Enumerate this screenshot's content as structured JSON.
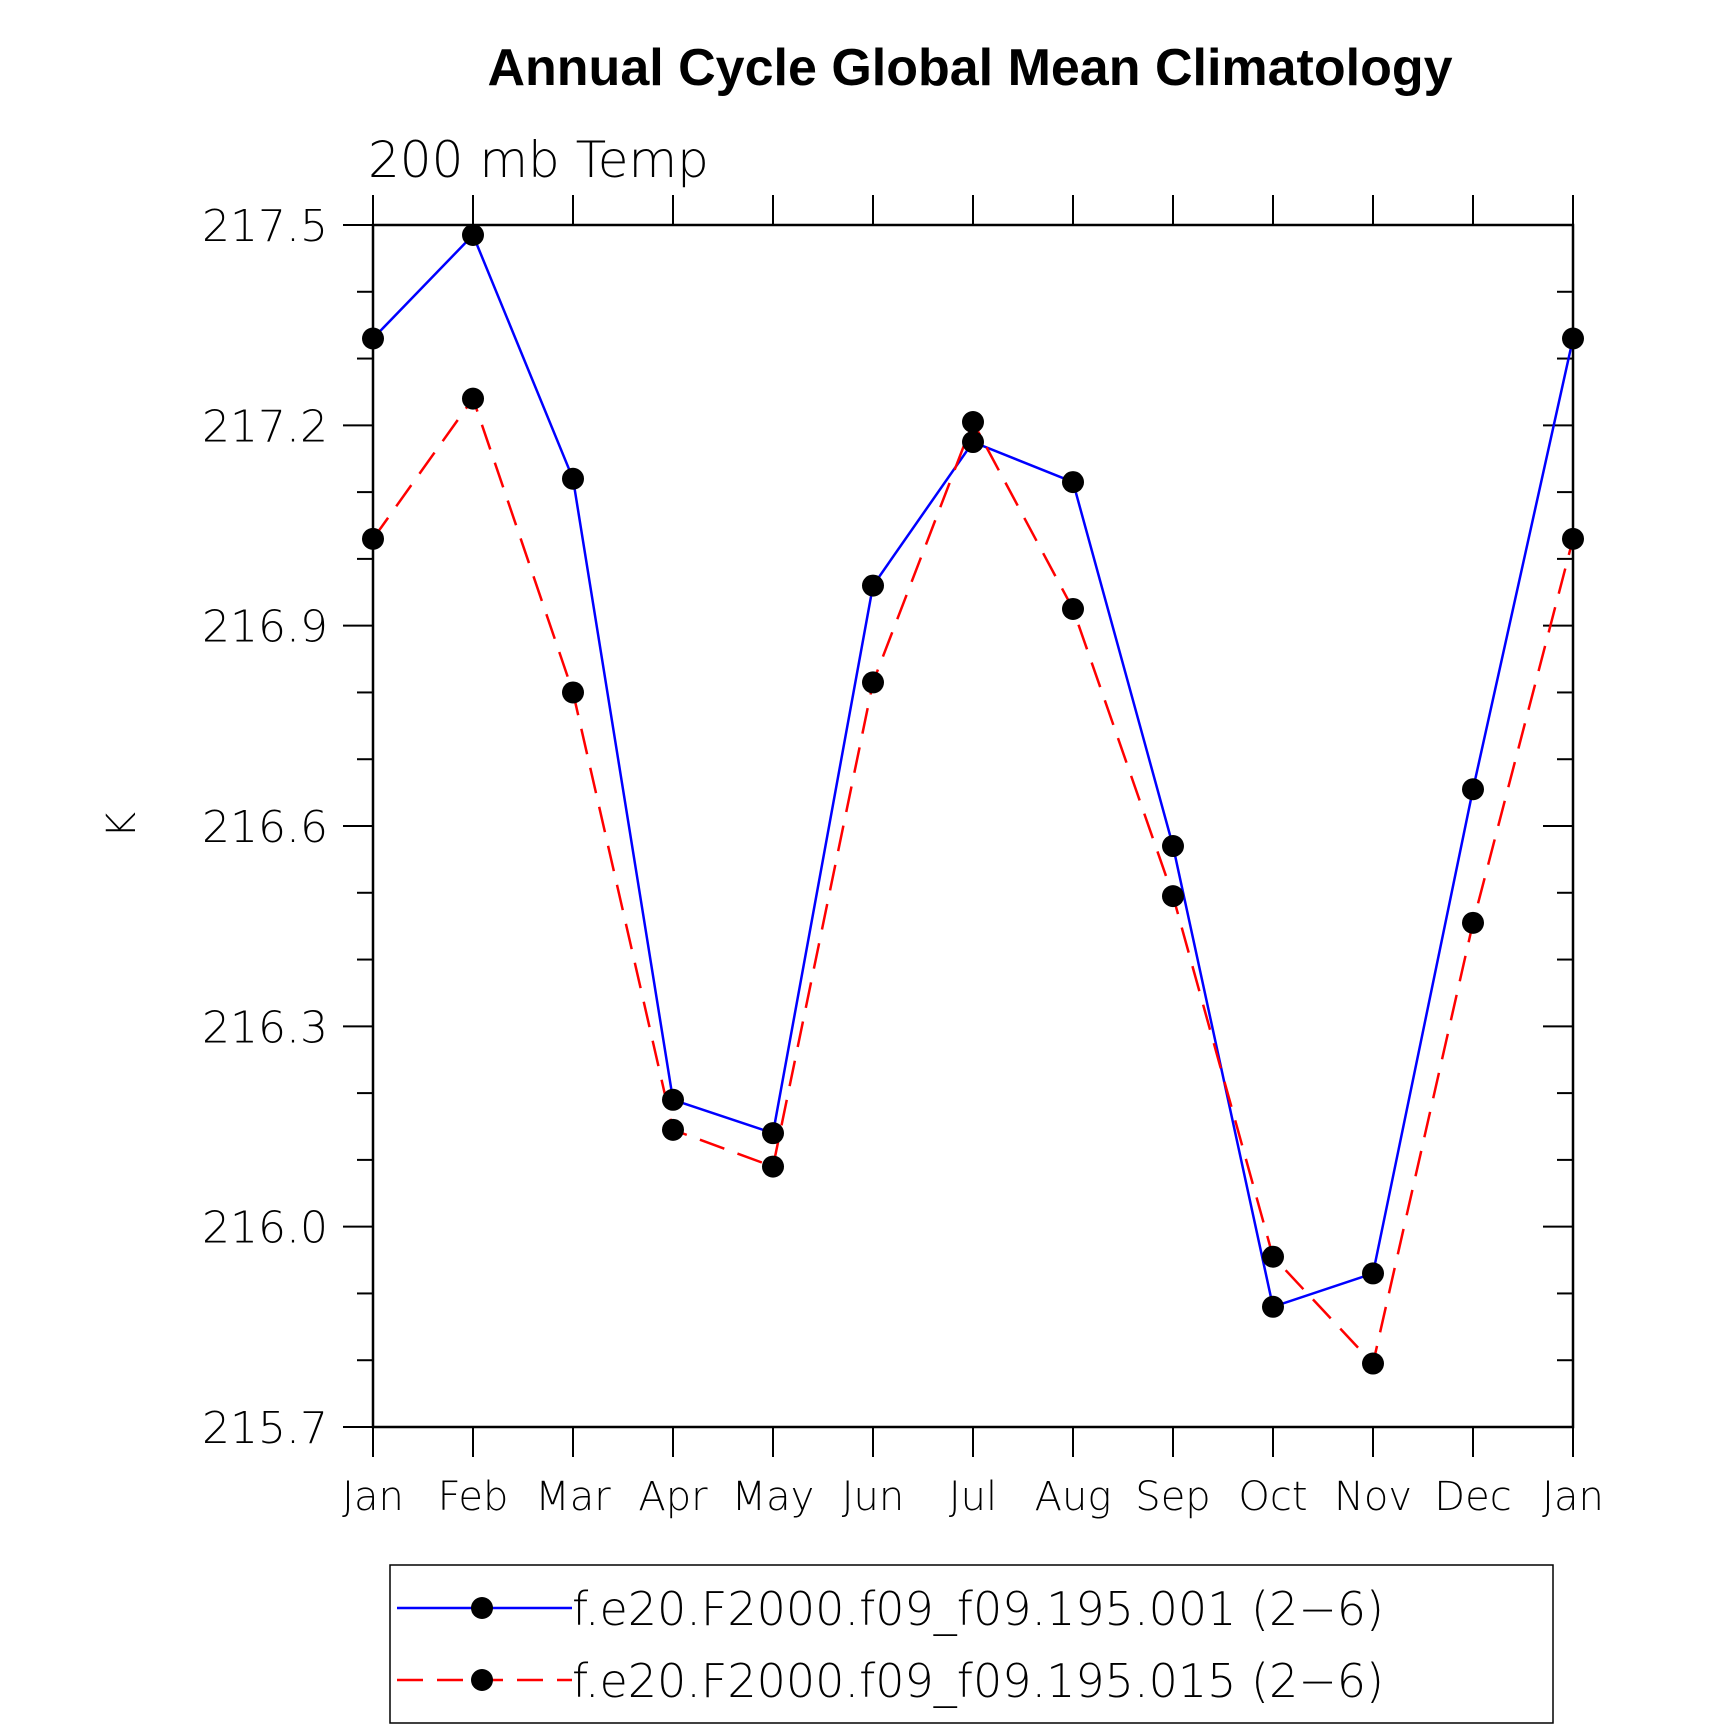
{
  "chart_data": {
    "type": "line",
    "title": "Annual Cycle Global Mean Climatology",
    "subtitle": "200 mb Temp",
    "xlabel": "",
    "ylabel": "K",
    "categories": [
      "Jan",
      "Feb",
      "Mar",
      "Apr",
      "May",
      "Jun",
      "Jul",
      "Aug",
      "Sep",
      "Oct",
      "Nov",
      "Dec",
      "Jan"
    ],
    "ylim": [
      215.7,
      217.5
    ],
    "yticks": [
      "217.5",
      "217.2",
      "216.9",
      "216.6",
      "216.3",
      "216.0",
      "215.7"
    ],
    "grid": false,
    "legend_position": "bottom",
    "series": [
      {
        "name": "f.e20.F2000.f09_f09.195.001 (2−6)",
        "color": "#0000ff",
        "style": "solid",
        "marker": "filled-circle",
        "values": [
          217.33,
          217.485,
          217.12,
          216.19,
          216.14,
          216.96,
          217.175,
          217.115,
          216.57,
          215.88,
          215.93,
          216.655,
          217.33
        ]
      },
      {
        "name": "f.e20.F2000.f09_f09.195.015 (2−6)",
        "color": "#ff0000",
        "style": "dashed",
        "marker": "filled-circle",
        "values": [
          217.03,
          217.24,
          216.8,
          216.145,
          216.09,
          216.815,
          217.205,
          216.925,
          216.495,
          215.955,
          215.795,
          216.455,
          217.03
        ]
      }
    ]
  }
}
